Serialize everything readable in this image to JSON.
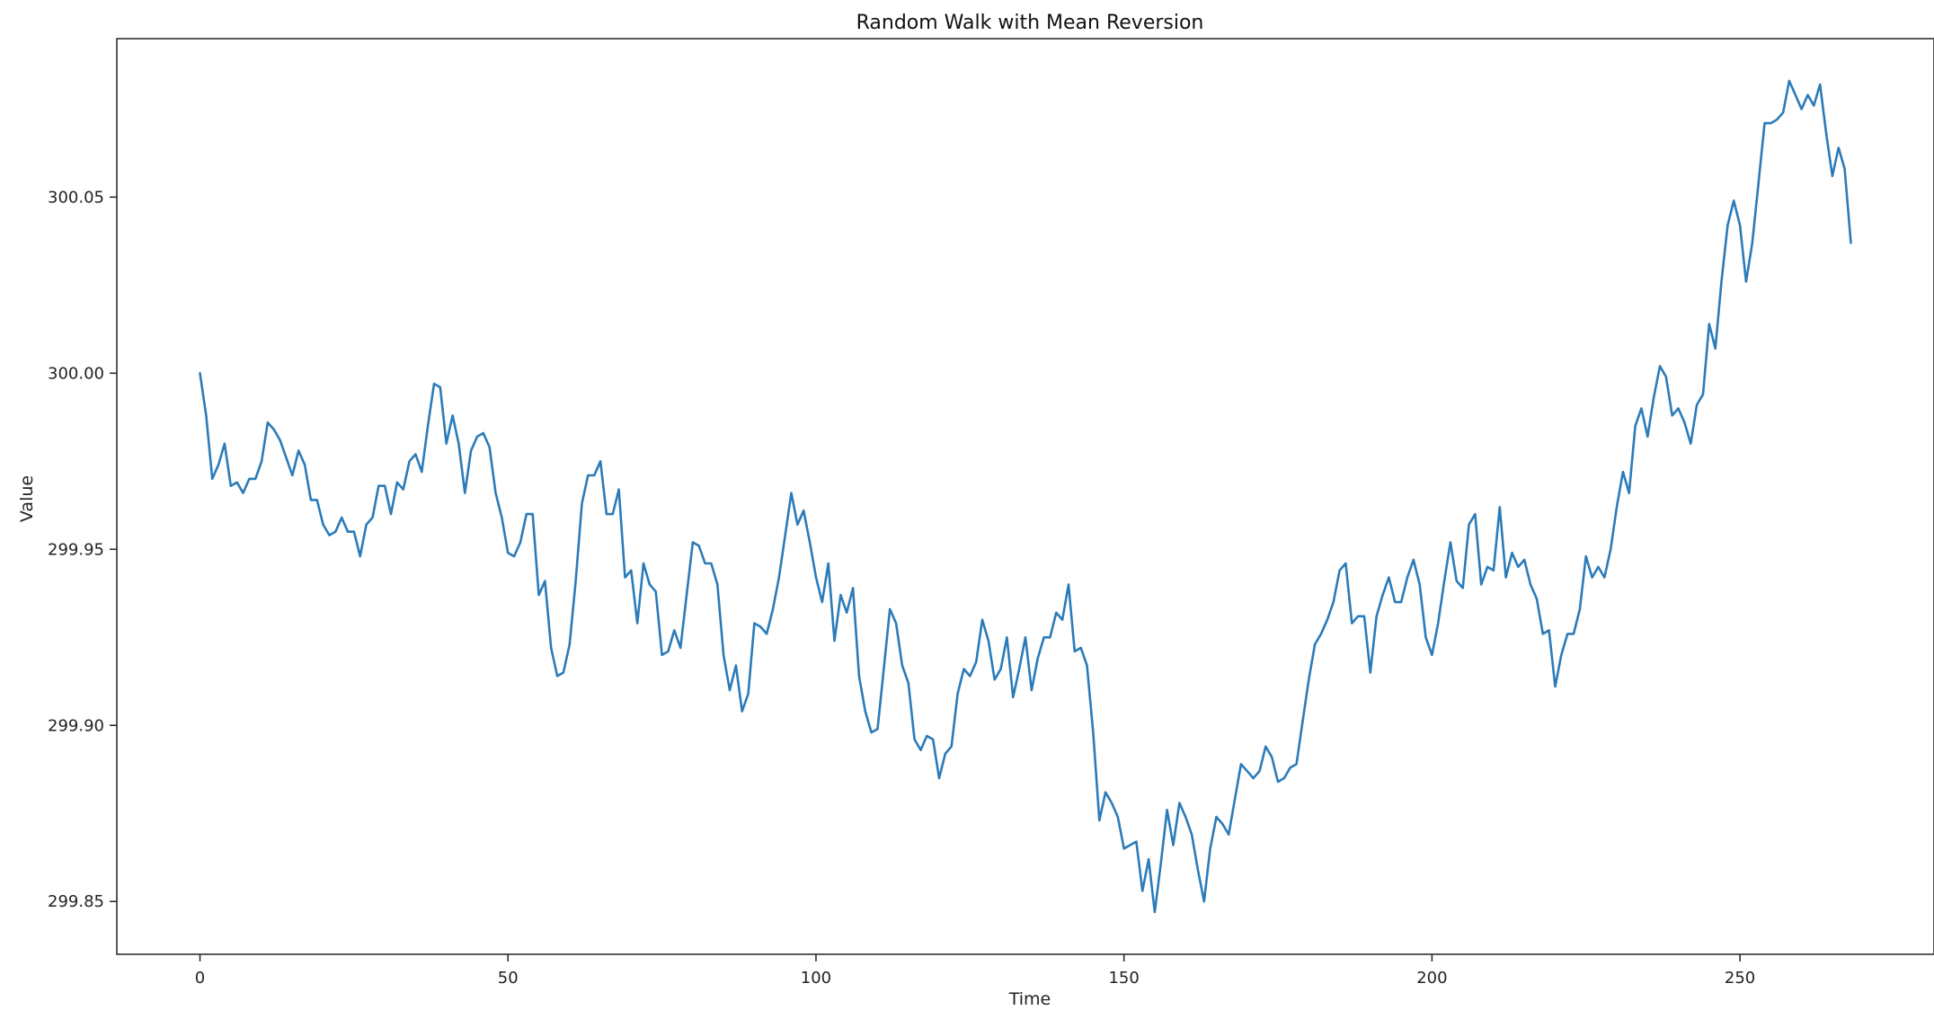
{
  "chart_data": {
    "type": "line",
    "title": "Random Walk with Mean Reversion",
    "xlabel": "Time",
    "ylabel": "Value",
    "xlim": [
      -13.5,
      281.5
    ],
    "ylim": [
      299.835,
      300.095
    ],
    "xticks": [
      0,
      50,
      100,
      150,
      200,
      250
    ],
    "xtick_labels": [
      "0",
      "50",
      "100",
      "150",
      "200",
      "250"
    ],
    "yticks": [
      299.85,
      299.9,
      299.95,
      300.0,
      300.05
    ],
    "ytick_labels": [
      "299.85",
      "299.90",
      "299.95",
      "300.00",
      "300.05"
    ],
    "grid": false,
    "series": [
      {
        "color": "#2b7bb9",
        "x_start": 0,
        "x_step": 1,
        "values": [
          300.0,
          299.988,
          299.97,
          299.974,
          299.98,
          299.968,
          299.969,
          299.966,
          299.97,
          299.97,
          299.975,
          299.986,
          299.984,
          299.981,
          299.976,
          299.971,
          299.978,
          299.974,
          299.964,
          299.964,
          299.957,
          299.954,
          299.955,
          299.959,
          299.955,
          299.955,
          299.948,
          299.957,
          299.959,
          299.968,
          299.968,
          299.96,
          299.969,
          299.967,
          299.975,
          299.977,
          299.972,
          299.985,
          299.997,
          299.996,
          299.98,
          299.988,
          299.98,
          299.966,
          299.978,
          299.982,
          299.983,
          299.979,
          299.966,
          299.959,
          299.949,
          299.948,
          299.952,
          299.96,
          299.96,
          299.937,
          299.941,
          299.922,
          299.914,
          299.915,
          299.923,
          299.941,
          299.963,
          299.971,
          299.971,
          299.975,
          299.96,
          299.96,
          299.967,
          299.942,
          299.944,
          299.929,
          299.946,
          299.94,
          299.938,
          299.92,
          299.921,
          299.927,
          299.922,
          299.937,
          299.952,
          299.951,
          299.946,
          299.946,
          299.94,
          299.92,
          299.91,
          299.917,
          299.904,
          299.909,
          299.929,
          299.928,
          299.926,
          299.933,
          299.942,
          299.954,
          299.966,
          299.957,
          299.961,
          299.952,
          299.942,
          299.935,
          299.946,
          299.924,
          299.937,
          299.932,
          299.939,
          299.914,
          299.904,
          299.898,
          299.899,
          299.916,
          299.933,
          299.929,
          299.917,
          299.912,
          299.896,
          299.893,
          299.897,
          299.896,
          299.885,
          299.892,
          299.894,
          299.909,
          299.916,
          299.914,
          299.918,
          299.93,
          299.924,
          299.913,
          299.916,
          299.925,
          299.908,
          299.916,
          299.925,
          299.91,
          299.919,
          299.925,
          299.925,
          299.932,
          299.93,
          299.94,
          299.921,
          299.922,
          299.917,
          299.898,
          299.873,
          299.881,
          299.878,
          299.874,
          299.865,
          299.866,
          299.867,
          299.853,
          299.862,
          299.847,
          299.861,
          299.876,
          299.866,
          299.878,
          299.874,
          299.869,
          299.859,
          299.85,
          299.865,
          299.874,
          299.872,
          299.869,
          299.879,
          299.889,
          299.887,
          299.885,
          299.887,
          299.894,
          299.891,
          299.884,
          299.885,
          299.888,
          299.889,
          299.901,
          299.913,
          299.923,
          299.926,
          299.93,
          299.935,
          299.944,
          299.946,
          299.929,
          299.931,
          299.931,
          299.915,
          299.931,
          299.937,
          299.942,
          299.935,
          299.935,
          299.942,
          299.947,
          299.94,
          299.925,
          299.92,
          299.929,
          299.941,
          299.952,
          299.941,
          299.939,
          299.957,
          299.96,
          299.94,
          299.945,
          299.944,
          299.962,
          299.942,
          299.949,
          299.945,
          299.947,
          299.94,
          299.936,
          299.926,
          299.927,
          299.911,
          299.92,
          299.926,
          299.926,
          299.933,
          299.948,
          299.942,
          299.945,
          299.942,
          299.95,
          299.962,
          299.972,
          299.966,
          299.985,
          299.99,
          299.982,
          299.993,
          300.002,
          299.999,
          299.988,
          299.99,
          299.986,
          299.98,
          299.991,
          299.994,
          300.014,
          300.007,
          300.026,
          300.042,
          300.049,
          300.042,
          300.026,
          300.037,
          300.054,
          300.071,
          300.071,
          300.072,
          300.074,
          300.083,
          300.079,
          300.075,
          300.079,
          300.076,
          300.082,
          300.068,
          300.056,
          300.064,
          300.058,
          300.037
        ]
      }
    ]
  }
}
